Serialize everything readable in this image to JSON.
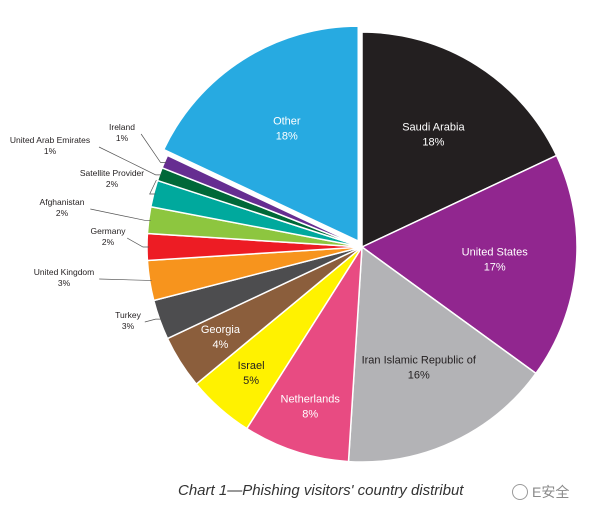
{
  "chart_data": {
    "type": "pie",
    "title": "Chart 1—Phishing visitors' country distribut",
    "slices": [
      {
        "label": "Saudi Arabia",
        "value": 18,
        "value_label": "18%",
        "color": "#231f20",
        "label_color": "#ffffff",
        "label_placement": "inside"
      },
      {
        "label": "United States",
        "value": 17,
        "value_label": "17%",
        "color": "#91268f",
        "label_color": "#ffffff",
        "label_placement": "inside"
      },
      {
        "label": "Iran Islamic Republic of",
        "value": 16,
        "value_label": "16%",
        "color": "#b3b3b6",
        "label_color": "#231f20",
        "label_placement": "inside"
      },
      {
        "label": "Netherlands",
        "value": 8,
        "value_label": "8%",
        "color": "#e84b82",
        "label_color": "#ffffff",
        "label_placement": "inside"
      },
      {
        "label": "Israel",
        "value": 5,
        "value_label": "5%",
        "color": "#fff200",
        "label_color": "#231f20",
        "label_placement": "inside"
      },
      {
        "label": "Georgia",
        "value": 4,
        "value_label": "4%",
        "color": "#8b5e3c",
        "label_color": "#ffffff",
        "label_placement": "inside"
      },
      {
        "label": "Turkey",
        "value": 3,
        "value_label": "3%",
        "color": "#4d4d4f",
        "label_color": "#231f20",
        "label_placement": "outside"
      },
      {
        "label": "United Kingdom",
        "value": 3,
        "value_label": "3%",
        "color": "#f7941d",
        "label_color": "#231f20",
        "label_placement": "outside"
      },
      {
        "label": "Germany",
        "value": 2,
        "value_label": "2%",
        "color": "#ed1c24",
        "label_color": "#231f20",
        "label_placement": "outside"
      },
      {
        "label": "Afghanistan",
        "value": 2,
        "value_label": "2%",
        "color": "#8dc63f",
        "label_color": "#231f20",
        "label_placement": "outside"
      },
      {
        "label": "Satellite Provider",
        "value": 2,
        "value_label": "2%",
        "color": "#00a99d",
        "label_color": "#231f20",
        "label_placement": "outside"
      },
      {
        "label": "United Arab Emirates",
        "value": 1,
        "value_label": "1%",
        "color": "#006838",
        "label_color": "#231f20",
        "label_placement": "outside"
      },
      {
        "label": "Ireland",
        "value": 1,
        "value_label": "1%",
        "color": "#662d91",
        "label_color": "#231f20",
        "label_placement": "outside"
      },
      {
        "label": "Other",
        "value": 18,
        "value_label": "18%",
        "color": "#27aae1",
        "label_color": "#ffffff",
        "label_placement": "inside",
        "exploded": true
      }
    ],
    "legend": "none"
  },
  "watermark": {
    "text": "E安全"
  }
}
